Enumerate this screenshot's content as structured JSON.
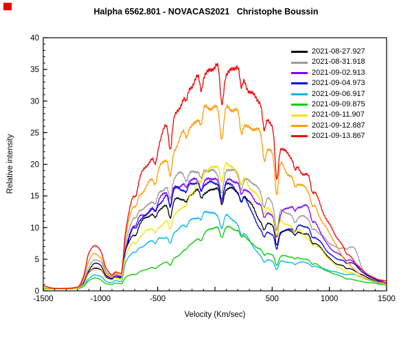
{
  "header": {
    "title": "Halpha 6562.801 - NOVACAS2021   Christophe Boussin",
    "corner_marker_color": "#e60000"
  },
  "chart_data": {
    "type": "line",
    "title": "Halpha 6562.801 - NOVACAS2021   Christophe Boussin",
    "xlabel": "Velocity (Km/sec)",
    "ylabel": "Relative intensity",
    "xlim": [
      -1500,
      1500
    ],
    "ylim": [
      0,
      40
    ],
    "grid": false,
    "legend_position": "top-right",
    "x_ticks": [
      {
        "v": -1500,
        "label": "-1500"
      },
      {
        "v": -1000,
        "label": "-1000"
      },
      {
        "v": -500,
        "label": "-500"
      },
      {
        "v": 0,
        "label": ""
      },
      {
        "v": 500,
        "label": "500"
      },
      {
        "v": 1000,
        "label": "1000"
      },
      {
        "v": 1500,
        "label": "1500"
      }
    ],
    "x_minor_step": 100,
    "y_ticks": [
      {
        "v": 0,
        "label": "0"
      },
      {
        "v": 5,
        "label": "5"
      },
      {
        "v": 10,
        "label": "10"
      },
      {
        "v": 15,
        "label": "15"
      },
      {
        "v": 20,
        "label": "20"
      },
      {
        "v": 25,
        "label": "25"
      },
      {
        "v": 30,
        "label": "30"
      },
      {
        "v": 35,
        "label": "35"
      },
      {
        "v": 40,
        "label": "40"
      }
    ],
    "y_minor_step": 1,
    "x": [
      -1500,
      -1400,
      -1300,
      -1200,
      -1150,
      -1100,
      -1050,
      -1000,
      -950,
      -900,
      -870,
      -820,
      -780,
      -700,
      -600,
      -500,
      -400,
      -300,
      -200,
      -100,
      0,
      100,
      200,
      300,
      400,
      500,
      600,
      700,
      800,
      900,
      1000,
      1100,
      1200,
      1300,
      1400,
      1500
    ],
    "series": [
      {
        "name": "2021-08-27.927",
        "color": "#000000",
        "values": [
          0.4,
          0.3,
          0.3,
          0.4,
          1.2,
          3.2,
          4.4,
          4.0,
          2.6,
          2.0,
          2.4,
          2.2,
          6.5,
          9.4,
          11.5,
          12.8,
          13.7,
          14.6,
          15.3,
          15.8,
          16.1,
          16.3,
          15.8,
          14.0,
          11.3,
          10.3,
          9.6,
          9.3,
          9.0,
          7.2,
          5.2,
          4.0,
          3.4,
          2.4,
          1.6,
          1.1
        ]
      },
      {
        "name": "2021-08-31.918",
        "color": "#999999",
        "values": [
          0.4,
          0.3,
          0.3,
          0.5,
          1.5,
          3.8,
          5.0,
          4.6,
          3.0,
          2.2,
          2.6,
          2.4,
          7.5,
          12.0,
          13.5,
          15.0,
          17.3,
          18.3,
          18.8,
          19.0,
          18.8,
          18.9,
          18.5,
          17.2,
          15.8,
          14.0,
          12.5,
          11.8,
          11.4,
          9.5,
          7.5,
          6.8,
          7.0,
          3.2,
          1.8,
          1.1
        ]
      },
      {
        "name": "2021-09-02.913",
        "color": "#8000ff",
        "values": [
          0.4,
          0.3,
          0.3,
          0.4,
          1.2,
          3.0,
          3.6,
          3.4,
          2.4,
          1.9,
          2.3,
          2.1,
          6.8,
          10.8,
          12.3,
          14.2,
          16.0,
          16.8,
          17.3,
          17.6,
          17.4,
          17.5,
          17.0,
          15.5,
          13.5,
          12.0,
          12.5,
          13.5,
          13.3,
          10.0,
          7.0,
          5.5,
          4.8,
          3.0,
          2.0,
          1.2
        ]
      },
      {
        "name": "2021-09-04.973",
        "color": "#0000e6",
        "values": [
          0.4,
          0.3,
          0.3,
          0.4,
          1.1,
          2.9,
          3.5,
          3.3,
          2.3,
          1.8,
          2.2,
          2.0,
          6.5,
          10.5,
          12.0,
          13.8,
          15.5,
          16.3,
          16.8,
          17.0,
          17.2,
          17.0,
          16.0,
          13.2,
          10.0,
          9.0,
          9.5,
          10.0,
          10.2,
          8.0,
          6.0,
          4.8,
          4.4,
          2.8,
          1.8,
          1.1
        ]
      },
      {
        "name": "2021-09-06.917",
        "color": "#00b4f0",
        "values": [
          0.4,
          0.3,
          0.3,
          0.4,
          0.9,
          2.0,
          2.5,
          2.3,
          1.6,
          1.3,
          1.6,
          1.5,
          4.5,
          6.3,
          7.5,
          8.2,
          8.8,
          10.0,
          11.3,
          12.2,
          12.3,
          11.8,
          10.5,
          8.0,
          5.5,
          4.8,
          4.6,
          4.5,
          4.4,
          3.8,
          3.2,
          2.8,
          2.6,
          2.0,
          1.4,
          0.9
        ]
      },
      {
        "name": "2021-09-09.875",
        "color": "#00cc00",
        "values": [
          0.3,
          0.3,
          0.3,
          0.35,
          0.7,
          1.6,
          2.0,
          1.8,
          1.2,
          1.0,
          1.2,
          1.1,
          2.2,
          2.7,
          3.4,
          4.0,
          4.7,
          6.0,
          7.5,
          9.0,
          10.0,
          10.2,
          9.5,
          8.0,
          6.5,
          5.8,
          5.5,
          5.3,
          5.0,
          4.0,
          3.0,
          2.3,
          1.8,
          1.4,
          1.2,
          0.9
        ]
      },
      {
        "name": "2021-09-11.907",
        "color": "#f2e400",
        "values": [
          0.4,
          0.3,
          0.3,
          0.4,
          1.0,
          2.8,
          3.4,
          3.2,
          2.2,
          1.7,
          2.1,
          1.9,
          5.5,
          8.0,
          9.3,
          10.2,
          11.3,
          13.0,
          15.5,
          18.5,
          20.0,
          20.2,
          19.0,
          16.5,
          14.5,
          12.5,
          11.0,
          9.8,
          8.6,
          7.0,
          5.0,
          3.5,
          2.8,
          2.0,
          1.5,
          1.0
        ]
      },
      {
        "name": "2021-09-12.887",
        "color": "#ff9900",
        "values": [
          0.5,
          0.35,
          0.35,
          0.5,
          1.8,
          4.8,
          5.9,
          5.4,
          3.2,
          2.3,
          2.8,
          2.5,
          8.5,
          14.0,
          16.5,
          19.0,
          21.5,
          24.0,
          26.5,
          28.3,
          29.2,
          29.0,
          28.0,
          26.0,
          24.5,
          22.0,
          19.5,
          17.5,
          16.0,
          12.5,
          9.0,
          6.0,
          3.7,
          2.2,
          1.5,
          1.1
        ]
      },
      {
        "name": "2021-09-13.867",
        "color": "#ee0000",
        "values": [
          0.8,
          0.4,
          0.4,
          0.6,
          2.2,
          5.9,
          7.1,
          6.5,
          3.8,
          2.5,
          3.0,
          2.7,
          9.5,
          16.0,
          19.5,
          23.0,
          26.5,
          29.5,
          32.5,
          34.5,
          35.2,
          35.3,
          35.0,
          32.0,
          29.5,
          26.0,
          22.5,
          20.0,
          18.5,
          14.5,
          10.5,
          7.5,
          5.1,
          3.0,
          2.0,
          1.5
        ]
      }
    ],
    "absorption_dips": [
      {
        "v": -950,
        "depth": 0.06,
        "w": 18
      },
      {
        "v": -690,
        "depth": 0.07,
        "w": 14
      },
      {
        "v": -520,
        "depth": 0.08,
        "w": 14
      },
      {
        "v": -390,
        "depth": 0.16,
        "w": 14
      },
      {
        "v": -250,
        "depth": 0.05,
        "w": 12
      },
      {
        "v": -120,
        "depth": 0.07,
        "w": 12
      },
      {
        "v": 60,
        "depth": 0.17,
        "w": 16
      },
      {
        "v": 230,
        "depth": 0.09,
        "w": 13
      },
      {
        "v": 430,
        "depth": 0.12,
        "w": 14
      },
      {
        "v": 540,
        "depth": 0.28,
        "w": 15
      },
      {
        "v": 700,
        "depth": 0.06,
        "w": 12
      },
      {
        "v": 850,
        "depth": 0.08,
        "w": 13
      },
      {
        "v": 1150,
        "depth": 0.06,
        "w": 12
      }
    ]
  }
}
